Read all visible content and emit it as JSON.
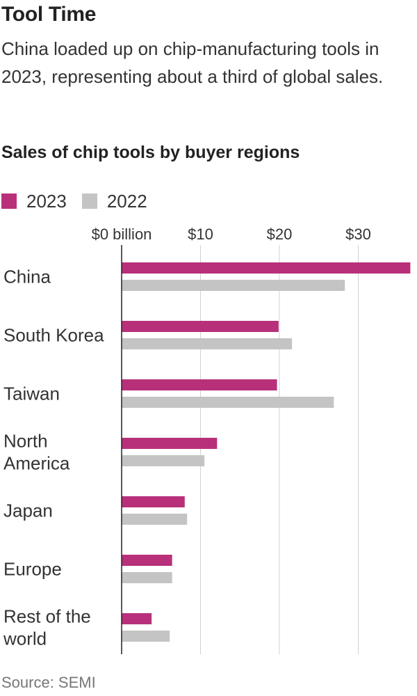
{
  "header": {
    "title": "Tool Time",
    "subtitle": "China loaded up on chip-manufacturing tools in 2023, representing about a third of global sales."
  },
  "colors": {
    "series_2023": "#b8307a",
    "series_2022": "#c4c4c4",
    "axis": "#222222",
    "grid": "#d0d0d0"
  },
  "source": "Source: SEMI",
  "chart_data": {
    "type": "bar",
    "orientation": "horizontal",
    "title": "Sales of chip tools by buyer regions",
    "xlabel": "",
    "ylabel": "",
    "unit": "billion USD",
    "xlim": [
      0,
      36.5
    ],
    "ticks": [
      0,
      10,
      20,
      30
    ],
    "tick_labels": [
      "$0 billion",
      "$10",
      "$20",
      "$30"
    ],
    "grid": true,
    "legend_position": "top-left",
    "categories": [
      "China",
      "South Korea",
      "Taiwan",
      "North America",
      "Japan",
      "Europe",
      "Rest of the world"
    ],
    "category_lines": [
      [
        "China"
      ],
      [
        "South Korea"
      ],
      [
        "Taiwan"
      ],
      [
        "North",
        "America"
      ],
      [
        "Japan"
      ],
      [
        "Europe"
      ],
      [
        "Rest of the",
        "world"
      ]
    ],
    "series": [
      {
        "name": "2023",
        "values": [
          36.6,
          19.9,
          19.7,
          12.1,
          8.0,
          6.4,
          3.8
        ]
      },
      {
        "name": "2022",
        "values": [
          28.3,
          21.6,
          26.9,
          10.5,
          8.3,
          6.4,
          6.1
        ]
      }
    ]
  }
}
